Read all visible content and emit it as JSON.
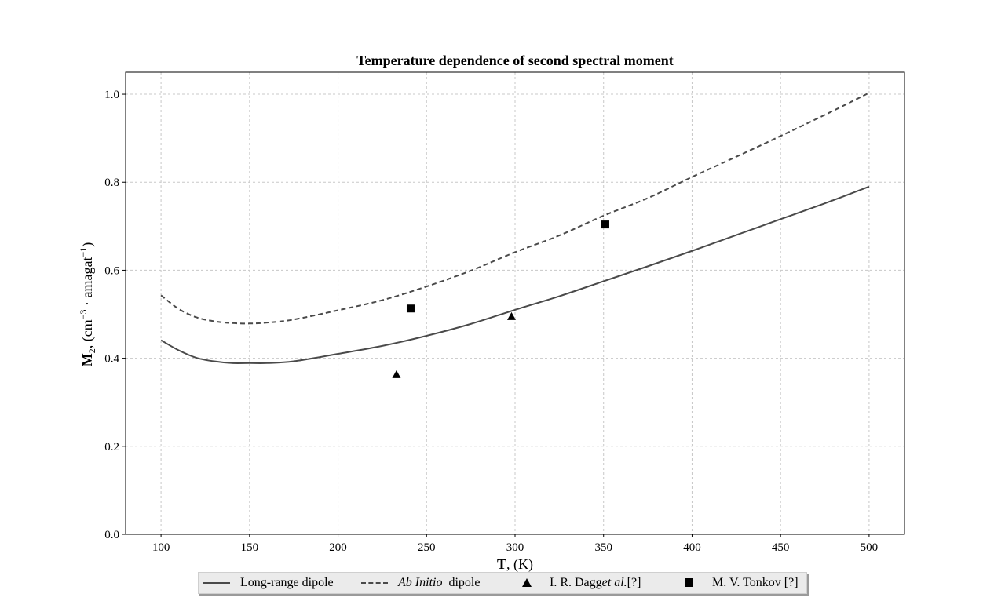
{
  "chart_data": {
    "type": "line",
    "title": "Temperature dependence of second spectral moment",
    "xlabel": {
      "bold": "T",
      "rest": ", (K)"
    },
    "ylabel": {
      "bold": "M",
      "sub": "2",
      "rest": ", (cm",
      "sup1": "−3",
      "mid": " · amagat",
      "sup2": "−1",
      "end": ")"
    },
    "xlim": [
      80,
      520
    ],
    "ylim": [
      0.0,
      1.05
    ],
    "xticks": [
      100,
      150,
      200,
      250,
      300,
      350,
      400,
      450,
      500
    ],
    "xtick_labels": [
      "100",
      "150",
      "200",
      "250",
      "300",
      "350",
      "400",
      "450",
      "500"
    ],
    "yticks": [
      0.0,
      0.2,
      0.4,
      0.6,
      0.8,
      1.0
    ],
    "ytick_labels": [
      "0.0",
      "0.2",
      "0.4",
      "0.6",
      "0.8",
      "1.0"
    ],
    "grid": true,
    "legend_position": "bottom-center, below axes",
    "series": [
      {
        "name": "Long-range dipole",
        "style": "solid",
        "color": "#4a4a4a",
        "x": [
          100,
          110,
          120,
          130,
          140,
          150,
          160,
          175,
          200,
          225,
          250,
          275,
          300,
          325,
          350,
          375,
          400,
          425,
          450,
          475,
          500
        ],
        "y": [
          0.441,
          0.418,
          0.401,
          0.393,
          0.389,
          0.389,
          0.389,
          0.393,
          0.41,
          0.428,
          0.451,
          0.478,
          0.51,
          0.541,
          0.575,
          0.609,
          0.644,
          0.68,
          0.716,
          0.752,
          0.79
        ]
      },
      {
        "name": "Ab Initio  dipole",
        "style": "dashed",
        "color": "#4a4a4a",
        "x": [
          100,
          110,
          120,
          130,
          140,
          150,
          160,
          175,
          200,
          225,
          250,
          275,
          300,
          325,
          350,
          375,
          400,
          425,
          450,
          475,
          500
        ],
        "y": [
          0.543,
          0.512,
          0.493,
          0.484,
          0.48,
          0.479,
          0.481,
          0.488,
          0.509,
          0.532,
          0.563,
          0.599,
          0.641,
          0.679,
          0.724,
          0.764,
          0.812,
          0.858,
          0.905,
          0.953,
          1.003
        ]
      },
      {
        "name": "I. R. Dagg et al. [?]",
        "style": "marker",
        "marker": "triangle",
        "color": "#000000",
        "x": [
          233,
          298
        ],
        "y": [
          0.363,
          0.495
        ]
      },
      {
        "name": "M. V. Tonkov [?]",
        "style": "marker",
        "marker": "square",
        "color": "#000000",
        "x": [
          241,
          351
        ],
        "y": [
          0.513,
          0.704
        ]
      }
    ]
  },
  "legend": {
    "item1": "Long-range dipole",
    "item2_italic": "Ab Initio",
    "item2_rest": "dipole",
    "item3_pre": "I. R. Dagg ",
    "item3_italic": "et al.",
    "item3_post": " [?]",
    "item4": "M. V. Tonkov [?]"
  }
}
